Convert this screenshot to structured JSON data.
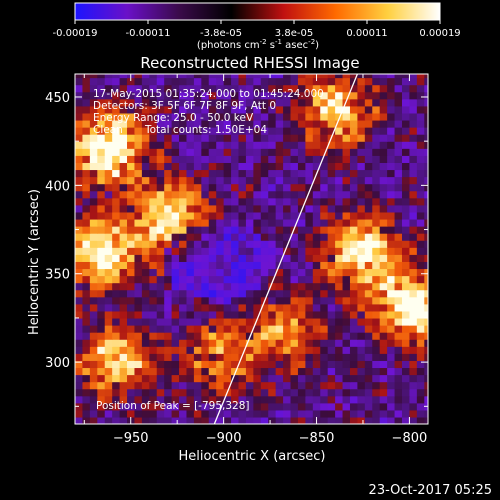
{
  "chart_data": {
    "type": "heatmap",
    "title": "Reconstructed RHESSI Image",
    "xlabel": "Heliocentric X (arcsec)",
    "ylabel": "Heliocentric Y (arcsec)",
    "xlim": [
      -980,
      -790
    ],
    "ylim": [
      265,
      463
    ],
    "xticks": [
      -950,
      -900,
      -850,
      -800
    ],
    "yticks": [
      300,
      350,
      400,
      450
    ],
    "colorbar": {
      "ticks": [
        "-0.00019",
        "-0.00011",
        "-3.8e-05",
        "3.8e-05",
        "0.00011",
        "0.00019"
      ],
      "range": [
        -0.00019,
        0.00019
      ],
      "unit_label_prefix": "(photons cm",
      "unit_label_exp1": "-2",
      "unit_label_mid": " s",
      "unit_label_exp2": "-1",
      "unit_label_mid2": " asec",
      "unit_label_exp3": "-2",
      "unit_label_suffix": ")",
      "colors": [
        "#1c14ff",
        "#6a10c8",
        "#3a0a4a",
        "#000000",
        "#c01010",
        "#ff6a00",
        "#ffd040",
        "#ffffff"
      ]
    },
    "annotations": {
      "time_range": "17-May-2015 01:35:24.000 to 01:45:24.000",
      "detectors": "Detectors: 3F 5F 6F 7F 8F 9F, Att 0",
      "energy": "Energy Range: 25.0 - 50.0 keV",
      "clean_label": "Clean",
      "total_counts": "Total counts: 1.50E+04",
      "peak": "Position of Peak = [-795,328]"
    },
    "limb_line": [
      [
        -905,
        265
      ],
      [
        -828,
        463
      ]
    ],
    "emission_regions": [
      {
        "x": -965,
        "y": 420,
        "value": 0.00019
      },
      {
        "x": -968,
        "y": 360,
        "value": 0.00017
      },
      {
        "x": -960,
        "y": 300,
        "value": 0.00014
      },
      {
        "x": -930,
        "y": 380,
        "value": 0.00015
      },
      {
        "x": -905,
        "y": 300,
        "value": 0.0001
      },
      {
        "x": -870,
        "y": 315,
        "value": 0.0001
      },
      {
        "x": -840,
        "y": 440,
        "value": 0.00014
      },
      {
        "x": -828,
        "y": 360,
        "value": 0.00017
      },
      {
        "x": -800,
        "y": 330,
        "value": 0.00019
      }
    ]
  },
  "footer": {
    "timestamp": "23-Oct-2017 05:25"
  }
}
